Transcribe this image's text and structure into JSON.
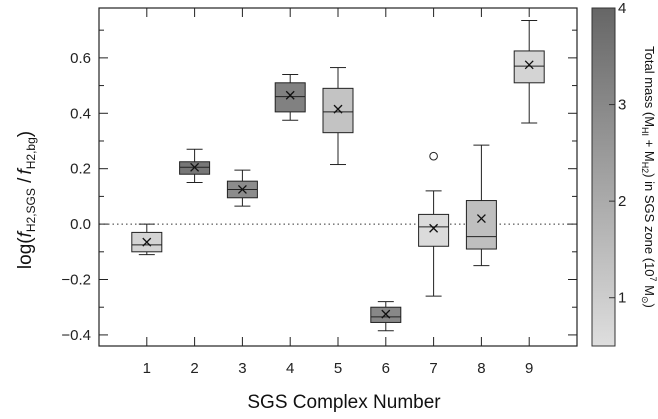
{
  "chart_data": {
    "type": "box",
    "title": "",
    "xlabel": "SGS Complex Number",
    "ylabel": "log(f_H2,SGS / f_H2,bg)",
    "ylabel_parts": {
      "prefix": "log(",
      "f1": "f",
      "s1": "H2,SGS",
      "mid": " /",
      "f2": "f",
      "s2": "H2,bg",
      "suffix": ")"
    },
    "xlim": [
      0,
      10
    ],
    "ylim": [
      -0.44,
      0.78
    ],
    "x_ticks": [
      1,
      2,
      3,
      4,
      5,
      6,
      7,
      8,
      9
    ],
    "y_ticks": [
      -0.4,
      -0.2,
      0.0,
      0.2,
      0.4,
      0.6
    ],
    "y_tick_labels": [
      "−0.4",
      "−0.2",
      "0.0",
      "0.2",
      "0.4",
      "0.6"
    ],
    "reference_line": {
      "y": 0.0,
      "style": "dotted"
    },
    "colorbar": {
      "label": "Total mass (MHI + MH2) in SGS zone (10⁷ M⊙)",
      "label_parts": {
        "a": "Total mass (M",
        "b": "HI",
        "c": " + M",
        "d": "H2",
        "e": ") in SGS zone (10",
        "f": "7",
        "g": " M",
        "h": "⊙",
        "i": ")"
      },
      "range": [
        0.5,
        4
      ],
      "ticks": [
        1,
        2,
        3,
        4
      ],
      "tick_labels": [
        "1",
        "2",
        "3",
        "4"
      ],
      "color_low": "#dedede",
      "color_high": "#666666"
    },
    "boxes": [
      {
        "x": 1,
        "whisker_low": -0.11,
        "q1": -0.1,
        "median": -0.075,
        "q3": -0.03,
        "whisker_high": 0.0,
        "mean": -0.065,
        "outliers": [],
        "mass": 0.8
      },
      {
        "x": 2,
        "whisker_low": 0.15,
        "q1": 0.18,
        "median": 0.205,
        "q3": 0.225,
        "whisker_high": 0.27,
        "mean": 0.205,
        "outliers": [],
        "mass": 3.5
      },
      {
        "x": 3,
        "whisker_low": 0.065,
        "q1": 0.095,
        "median": 0.125,
        "q3": 0.155,
        "whisker_high": 0.195,
        "mean": 0.125,
        "outliers": [],
        "mass": 2.9
      },
      {
        "x": 4,
        "whisker_low": 0.375,
        "q1": 0.405,
        "median": 0.46,
        "q3": 0.51,
        "whisker_high": 0.54,
        "mean": 0.465,
        "outliers": [],
        "mass": 3.2
      },
      {
        "x": 5,
        "whisker_low": 0.215,
        "q1": 0.33,
        "median": 0.405,
        "q3": 0.49,
        "whisker_high": 0.565,
        "mean": 0.415,
        "outliers": [],
        "mass": 1.3
      },
      {
        "x": 6,
        "whisker_low": -0.385,
        "q1": -0.355,
        "median": -0.335,
        "q3": -0.3,
        "whisker_high": -0.28,
        "mean": -0.325,
        "outliers": [],
        "mass": 3.0
      },
      {
        "x": 7,
        "whisker_low": -0.26,
        "q1": -0.08,
        "median": -0.01,
        "q3": 0.035,
        "whisker_high": 0.12,
        "mean": -0.015,
        "outliers": [
          0.245
        ],
        "mass": 0.6
      },
      {
        "x": 8,
        "whisker_low": -0.15,
        "q1": -0.09,
        "median": -0.045,
        "q3": 0.085,
        "whisker_high": 0.285,
        "mean": 0.02,
        "outliers": [],
        "mass": 1.4
      },
      {
        "x": 9,
        "whisker_low": 0.365,
        "q1": 0.51,
        "median": 0.57,
        "q3": 0.625,
        "whisker_high": 0.735,
        "mean": 0.575,
        "outliers": [],
        "mass": 0.8
      }
    ]
  }
}
